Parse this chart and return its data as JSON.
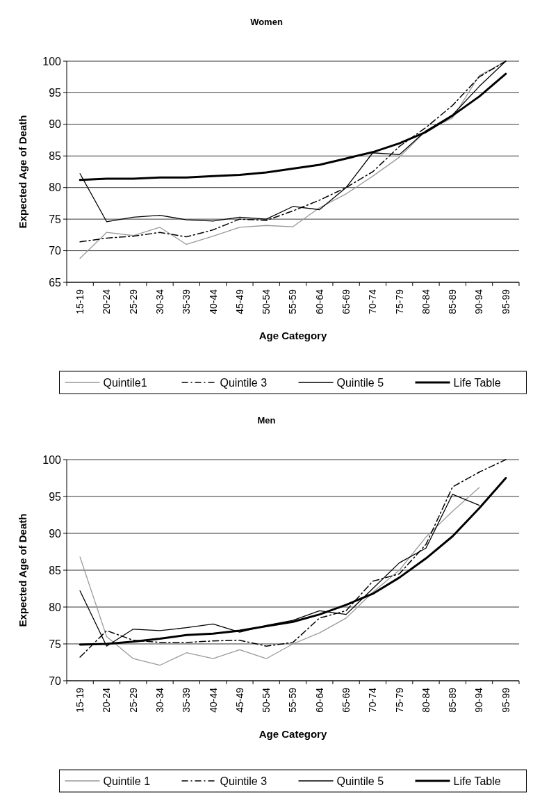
{
  "chart_data": [
    {
      "type": "line",
      "title": "Women",
      "xlabel": "Age Category",
      "ylabel": "Expected Age of Death",
      "categories": [
        "15-19",
        "20-24",
        "25-29",
        "30-34",
        "35-39",
        "40-44",
        "45-49",
        "50-54",
        "55-59",
        "60-64",
        "65-69",
        "70-74",
        "75-79",
        "80-84",
        "85-89",
        "90-94",
        "95-99"
      ],
      "ylim": [
        65,
        100
      ],
      "yticks": [
        65,
        70,
        75,
        80,
        85,
        90,
        95,
        100
      ],
      "grid": "y",
      "legend": "bottom",
      "marker": "none",
      "series": [
        {
          "name": "Quintile1",
          "color": "#999999",
          "line_style": "solid",
          "values": [
            68.8,
            72.9,
            72.4,
            73.7,
            71.0,
            72.3,
            73.7,
            74.0,
            73.8,
            76.8,
            79.0,
            81.8,
            84.8,
            89.0,
            91.0,
            97.7,
            100
          ]
        },
        {
          "name": "Quintile 3",
          "color": "#000000",
          "line_style": "dashed",
          "values": [
            71.4,
            72.0,
            72.3,
            72.9,
            72.2,
            73.3,
            75.0,
            74.8,
            76.3,
            78.0,
            80.0,
            82.5,
            86.5,
            89.5,
            93.0,
            97.5,
            100
          ]
        },
        {
          "name": "Quintile 5",
          "color": "#000000",
          "line_style": "solid",
          "values": [
            82.2,
            74.6,
            75.3,
            75.6,
            74.9,
            74.7,
            75.3,
            75.0,
            77.0,
            76.5,
            80.0,
            85.5,
            85.2,
            89.0,
            91.5,
            96.0,
            100
          ]
        },
        {
          "name": "Life Table",
          "color": "#000000",
          "line_style": "solid",
          "values": [
            81.2,
            81.4,
            81.4,
            81.6,
            81.6,
            81.8,
            82.0,
            82.4,
            83.0,
            83.6,
            84.6,
            85.6,
            87.0,
            88.8,
            91.4,
            94.4,
            98.0
          ]
        }
      ]
    },
    {
      "type": "line",
      "title": "Men",
      "xlabel": "Age Category",
      "ylabel": "Expected Age of Death",
      "categories": [
        "15-19",
        "20-24",
        "25-29",
        "30-34",
        "35-39",
        "40-44",
        "45-49",
        "50-54",
        "55-59",
        "60-64",
        "65-69",
        "70-74",
        "75-79",
        "80-84",
        "85-89",
        "90-94",
        "95-99"
      ],
      "ylim": [
        70,
        100
      ],
      "yticks": [
        70,
        75,
        80,
        85,
        90,
        95,
        100
      ],
      "grid": "y",
      "legend": "bottom",
      "marker": "none",
      "series": [
        {
          "name": "Quintile 1",
          "color": "#999999",
          "line_style": "solid",
          "values": [
            86.8,
            76.0,
            73.0,
            72.1,
            73.8,
            73.0,
            74.2,
            73.0,
            75.0,
            76.5,
            78.5,
            82.0,
            85.0,
            89.5,
            93.0,
            96.2,
            null
          ]
        },
        {
          "name": "Quintile 3",
          "color": "#000000",
          "line_style": "dashed",
          "values": [
            73.2,
            76.8,
            75.5,
            75.2,
            75.2,
            75.4,
            75.5,
            74.7,
            75.2,
            78.5,
            79.5,
            83.5,
            84.5,
            88.5,
            96.3,
            98.3,
            100
          ]
        },
        {
          "name": "Quintile 5",
          "color": "#000000",
          "line_style": "solid",
          "values": [
            82.2,
            74.7,
            77.0,
            76.8,
            77.2,
            77.7,
            76.6,
            77.5,
            78.2,
            79.5,
            79.0,
            82.5,
            86.0,
            88.0,
            95.3,
            93.8,
            null
          ]
        },
        {
          "name": "Life Table",
          "color": "#000000",
          "line_style": "solid",
          "values": [
            74.9,
            75.0,
            75.3,
            75.7,
            76.2,
            76.4,
            76.8,
            77.4,
            78.0,
            79.0,
            80.3,
            81.8,
            84.0,
            86.6,
            89.6,
            93.4,
            97.5
          ]
        }
      ]
    }
  ]
}
